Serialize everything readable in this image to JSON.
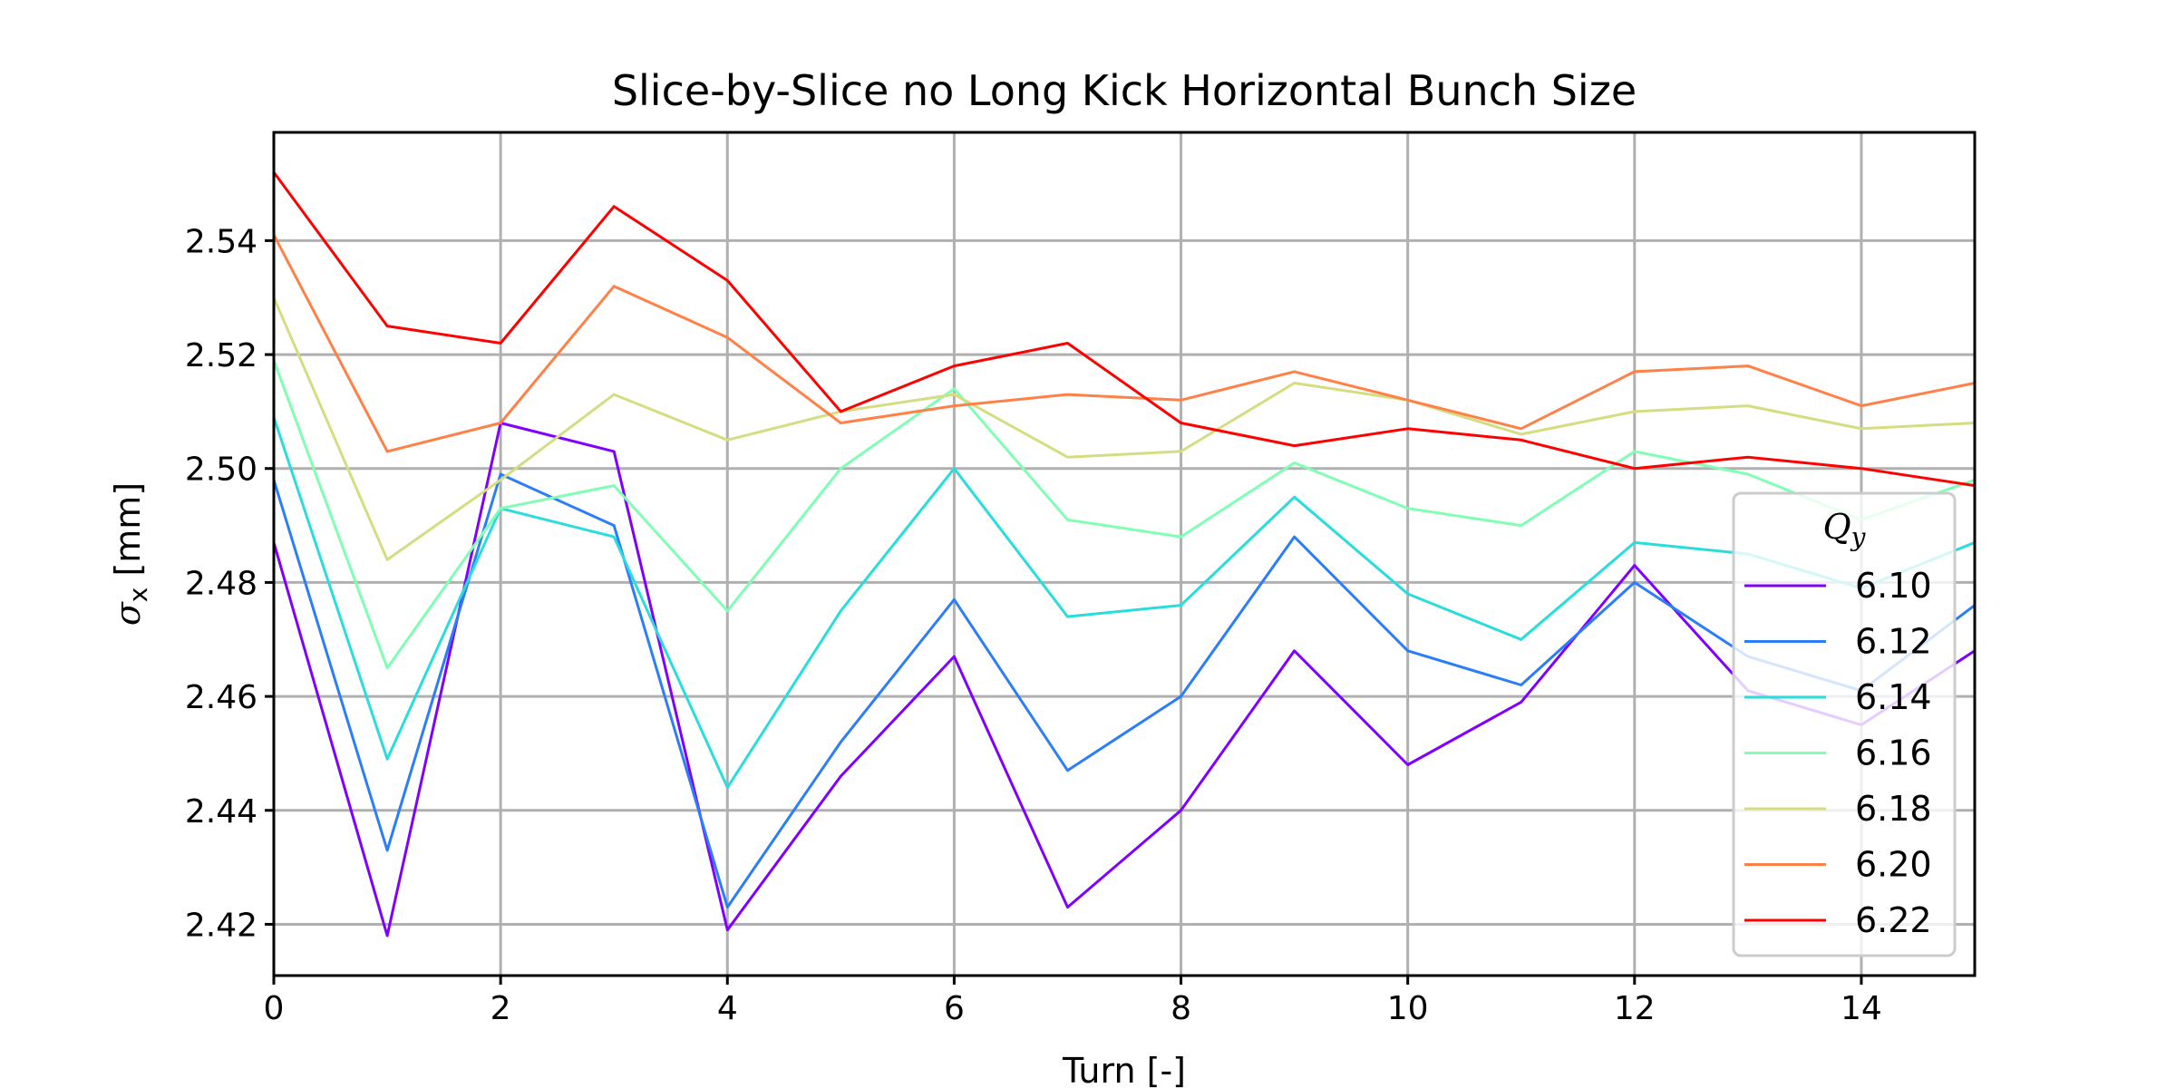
{
  "chart_data": {
    "type": "line",
    "title": "Slice-by-Slice no Long Kick Horizontal Bunch Size",
    "xlabel": "Turn [-]",
    "ylabel_symbol": "σ",
    "ylabel_sub": "x",
    "ylabel_unit": " [mm]",
    "xlim": [
      0,
      15
    ],
    "ylim": [
      2.411,
      2.559
    ],
    "xticks": [
      0,
      2,
      4,
      6,
      8,
      10,
      12,
      14
    ],
    "xtick_labels": [
      "0",
      "2",
      "4",
      "6",
      "8",
      "10",
      "12",
      "14"
    ],
    "yticks": [
      2.42,
      2.44,
      2.46,
      2.48,
      2.5,
      2.52,
      2.54
    ],
    "ytick_labels": [
      "2.42",
      "2.44",
      "2.46",
      "2.48",
      "2.50",
      "2.52",
      "2.54"
    ],
    "grid": true,
    "legend": {
      "title_symbol": "Q",
      "title_sub": "y",
      "placement": "right"
    },
    "x": [
      0,
      1,
      2,
      3,
      4,
      5,
      6,
      7,
      8,
      9,
      10,
      11,
      12,
      13,
      14,
      15
    ],
    "series": [
      {
        "name": "6.10",
        "color": "#8000ff",
        "values": [
          2.487,
          2.418,
          2.508,
          2.503,
          2.419,
          2.446,
          2.467,
          2.423,
          2.44,
          2.468,
          2.448,
          2.459,
          2.483,
          2.461,
          2.455,
          2.468
        ]
      },
      {
        "name": "6.12",
        "color": "#2c7ef8",
        "values": [
          2.498,
          2.433,
          2.499,
          2.49,
          2.423,
          2.452,
          2.477,
          2.447,
          2.46,
          2.488,
          2.468,
          2.462,
          2.48,
          2.467,
          2.461,
          2.476
        ]
      },
      {
        "name": "6.14",
        "color": "#2adddd",
        "values": [
          2.509,
          2.449,
          2.493,
          2.488,
          2.444,
          2.475,
          2.5,
          2.474,
          2.476,
          2.495,
          2.478,
          2.47,
          2.487,
          2.485,
          2.479,
          2.487
        ]
      },
      {
        "name": "6.16",
        "color": "#80ffb4",
        "values": [
          2.519,
          2.465,
          2.493,
          2.497,
          2.475,
          2.5,
          2.514,
          2.491,
          2.488,
          2.501,
          2.493,
          2.49,
          2.503,
          2.499,
          2.491,
          2.498
        ]
      },
      {
        "name": "6.18",
        "color": "#d4dd80",
        "values": [
          2.53,
          2.484,
          2.498,
          2.513,
          2.505,
          2.51,
          2.513,
          2.502,
          2.503,
          2.515,
          2.512,
          2.506,
          2.51,
          2.511,
          2.507,
          2.508
        ]
      },
      {
        "name": "6.20",
        "color": "#ff8147",
        "values": [
          2.541,
          2.503,
          2.508,
          2.532,
          2.523,
          2.508,
          2.511,
          2.513,
          2.512,
          2.517,
          2.512,
          2.507,
          2.517,
          2.518,
          2.511,
          2.515
        ]
      },
      {
        "name": "6.22",
        "color": "#ff0000",
        "values": [
          2.552,
          2.525,
          2.522,
          2.546,
          2.533,
          2.51,
          2.518,
          2.522,
          2.508,
          2.504,
          2.507,
          2.505,
          2.5,
          2.502,
          2.5,
          2.497
        ]
      }
    ]
  }
}
